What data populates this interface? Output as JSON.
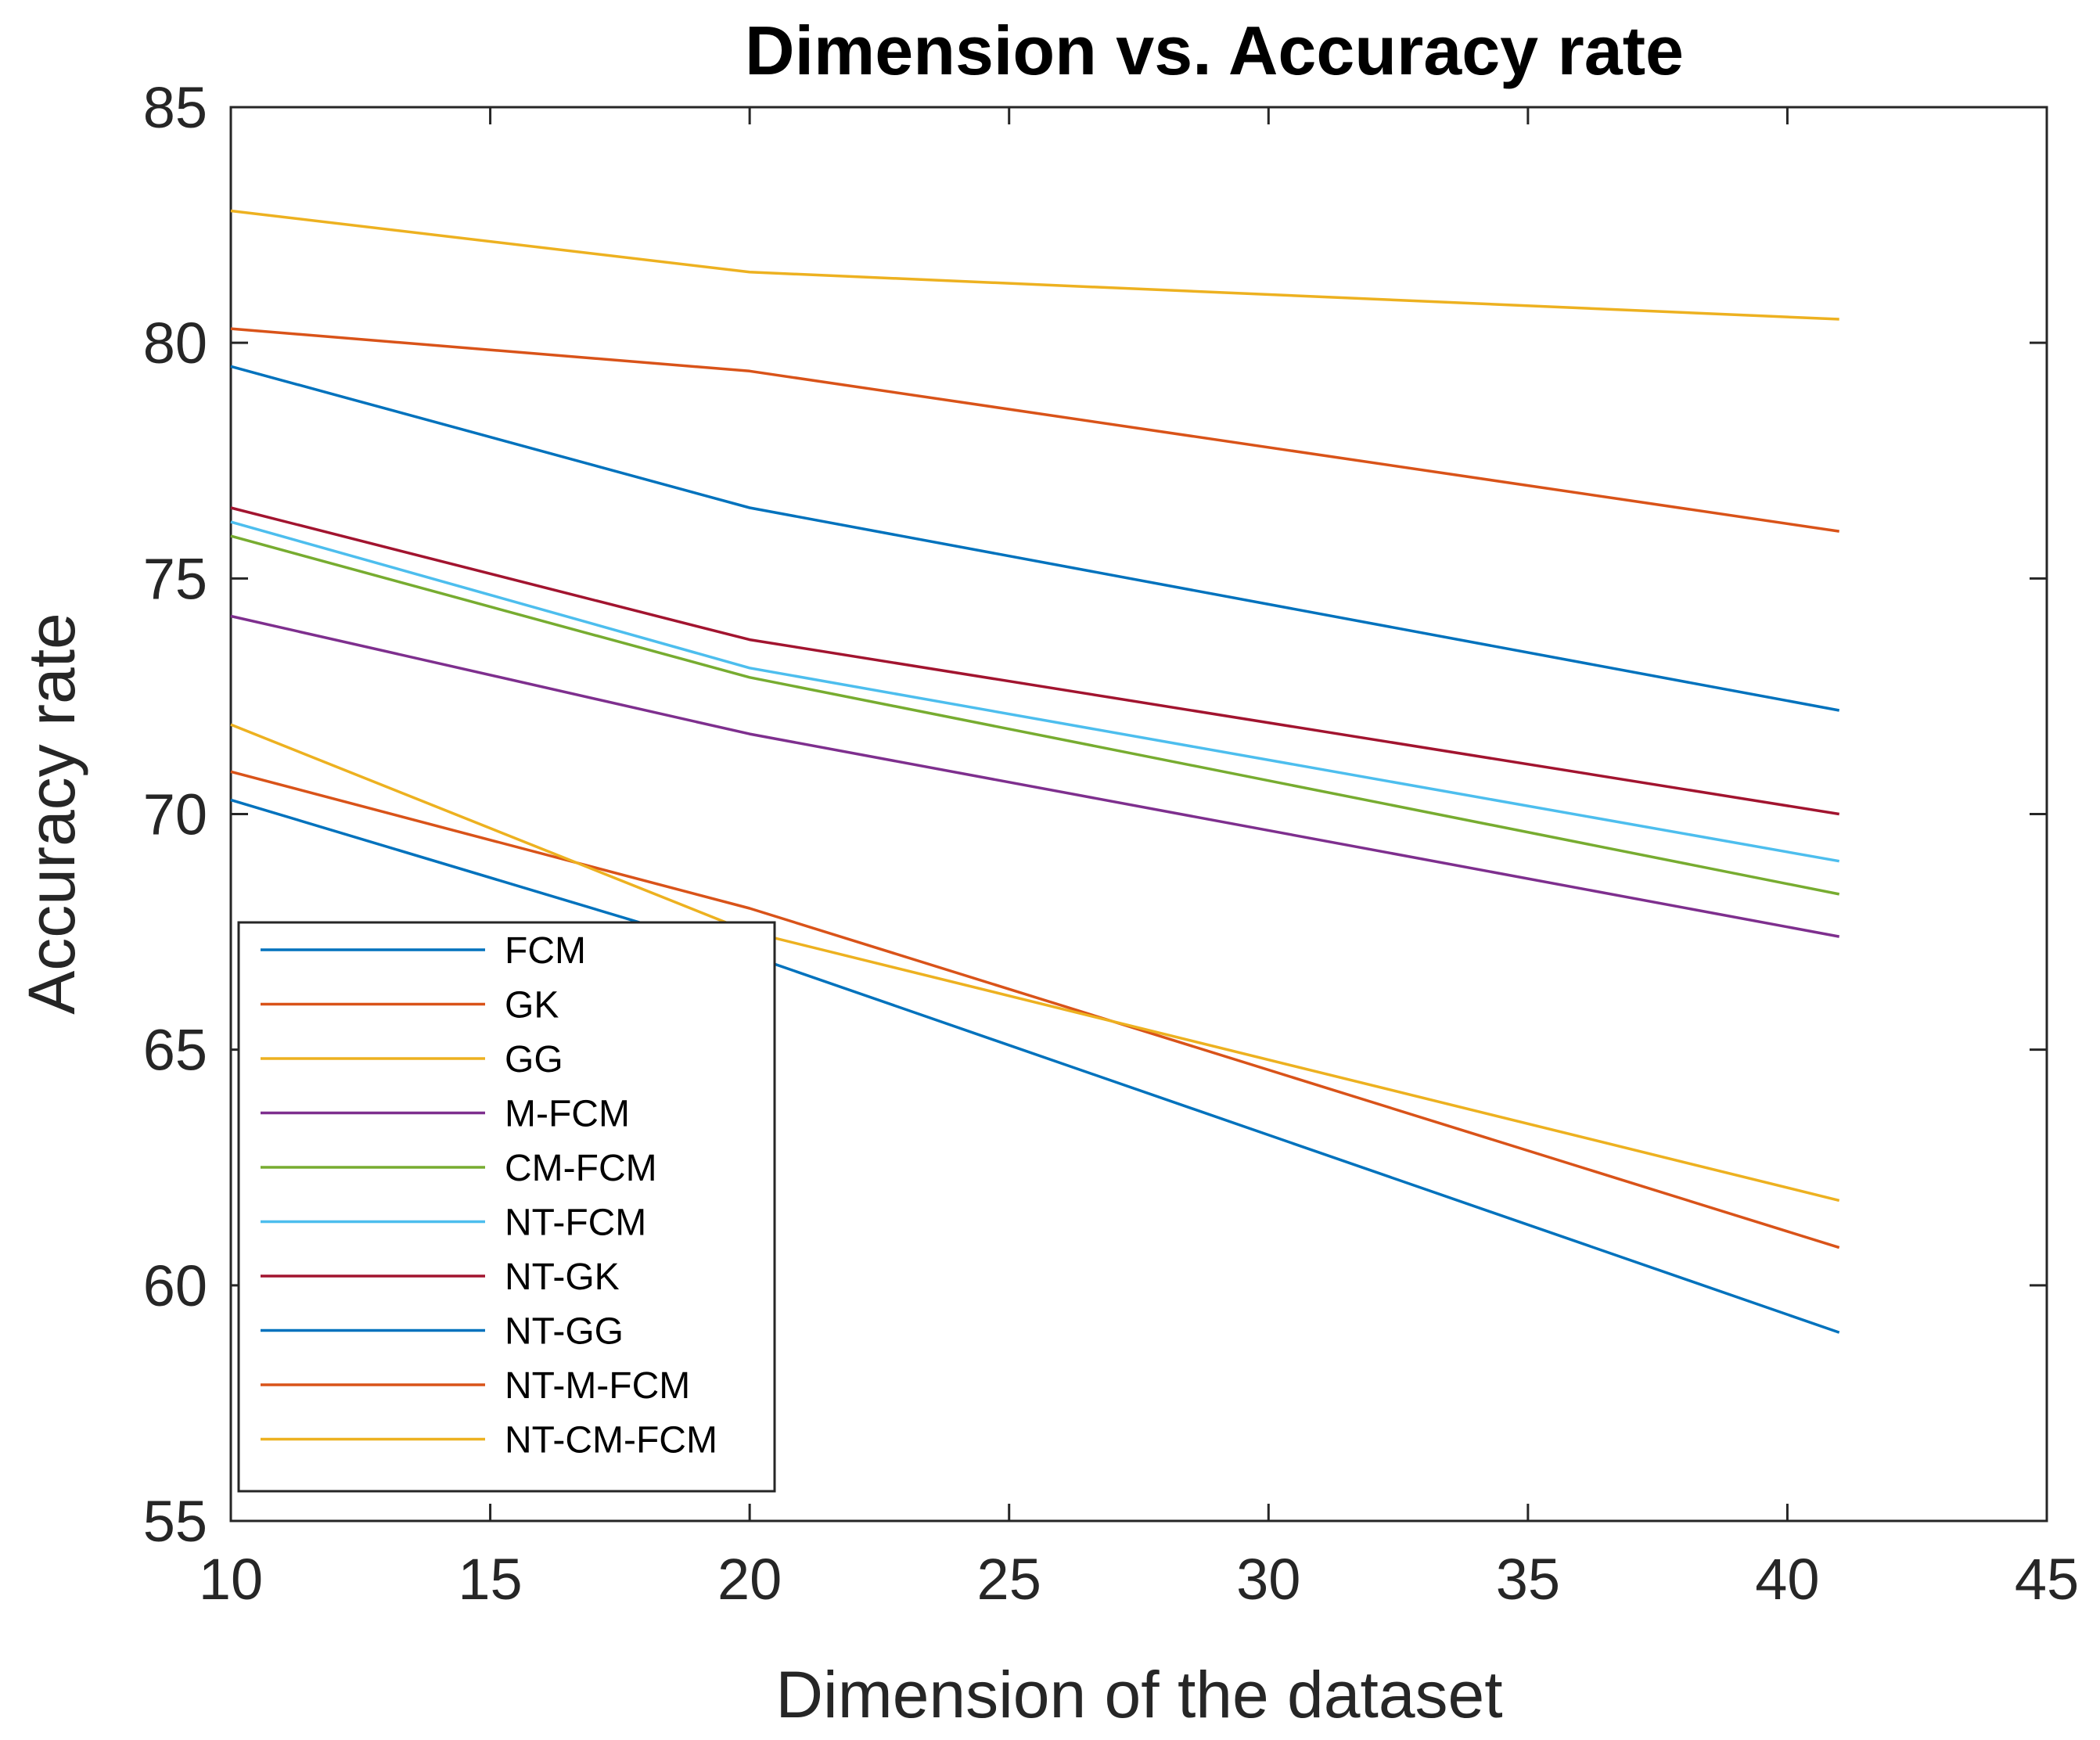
{
  "chart_data": {
    "type": "line",
    "title": "Dimension vs. Accuracy rate",
    "xlabel": "Dimension of the dataset",
    "ylabel": "Accuracy rate",
    "xlim": [
      10,
      45
    ],
    "ylim": [
      55,
      85
    ],
    "xticks": [
      10,
      15,
      20,
      25,
      30,
      35,
      40,
      45
    ],
    "yticks": [
      55,
      60,
      65,
      70,
      75,
      80,
      85
    ],
    "grid": false,
    "legend_position": "bottom-left",
    "x": [
      10,
      20,
      41
    ],
    "series": [
      {
        "name": "FCM",
        "color": "#0072BD",
        "values": [
          79.5,
          76.5,
          72.2
        ]
      },
      {
        "name": "GK",
        "color": "#D95319",
        "values": [
          80.3,
          79.4,
          76.0
        ]
      },
      {
        "name": "GG",
        "color": "#EDB120",
        "values": [
          82.8,
          81.5,
          80.5
        ]
      },
      {
        "name": "M-FCM",
        "color": "#7E2F8E",
        "values": [
          74.2,
          71.7,
          67.4
        ]
      },
      {
        "name": "CM-FCM",
        "color": "#77AC30",
        "values": [
          75.9,
          72.9,
          68.3
        ]
      },
      {
        "name": "NT-FCM",
        "color": "#4DBEEE",
        "values": [
          76.2,
          73.1,
          69.0
        ]
      },
      {
        "name": "NT-GK",
        "color": "#A2142F",
        "values": [
          76.5,
          73.7,
          70.0
        ]
      },
      {
        "name": "NT-GG",
        "color": "#0072BD",
        "values": [
          70.3,
          67.0,
          59.0
        ]
      },
      {
        "name": "NT-M-FCM",
        "color": "#D95319",
        "values": [
          70.9,
          68.0,
          60.8
        ]
      },
      {
        "name": "NT-CM-FCM",
        "color": "#EDB120",
        "values": [
          71.9,
          67.5,
          61.8
        ]
      }
    ]
  }
}
